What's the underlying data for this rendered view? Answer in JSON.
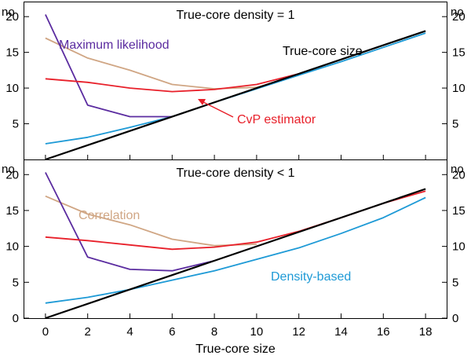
{
  "chart_data": {
    "type": "line",
    "xlabel": "True-core size",
    "unit_label": "no",
    "x_ticks": [
      "0",
      "2",
      "4",
      "6",
      "8",
      "10",
      "12",
      "14",
      "16",
      "18"
    ],
    "xlim": [
      -1,
      19
    ],
    "colors": {
      "true_core": "#000000",
      "max_likelihood": "#5b2ca0",
      "correlation": "#d0a684",
      "cvp": "#e8202a",
      "density": "#1e9ad6"
    },
    "panels": [
      {
        "title": "True-core density = 1",
        "ylim": [
          0,
          22
        ],
        "y_ticks": [
          "5",
          "10",
          "15",
          "20"
        ],
        "series": [
          {
            "name": "Correlation",
            "color_key": "correlation",
            "x": [
              0,
              2,
              4,
              6,
              8,
              10,
              12
            ],
            "y": [
              17.0,
              14.2,
              12.5,
              10.5,
              9.9,
              10.1,
              11.8
            ]
          },
          {
            "name": "Maximum likelihood",
            "color_key": "max_likelihood",
            "x": [
              0,
              2,
              4,
              6
            ],
            "y": [
              20.3,
              7.6,
              6.0,
              6.0
            ]
          },
          {
            "name": "CvP estimator",
            "color_key": "cvp",
            "x": [
              0,
              2,
              4,
              6,
              8,
              10,
              12
            ],
            "y": [
              11.3,
              10.8,
              10.0,
              9.5,
              9.8,
              10.5,
              12.0
            ]
          },
          {
            "name": "Density-based",
            "color_key": "density",
            "x": [
              0,
              2,
              4,
              6,
              8,
              10,
              12,
              14,
              16,
              18
            ],
            "y": [
              2.2,
              3.1,
              4.5,
              6.0,
              8.0,
              9.9,
              11.8,
              13.7,
              15.7,
              17.7
            ]
          },
          {
            "name": "True-core size",
            "color_key": "true_core",
            "x": [
              0,
              18
            ],
            "y": [
              0,
              18
            ]
          }
        ],
        "labels": [
          {
            "text": "Maximum likelihood",
            "color_key": "max_likelihood"
          },
          {
            "text": "True-core size",
            "color_key": "true_core"
          },
          {
            "text": "CvP estimator",
            "color_key": "cvp"
          }
        ]
      },
      {
        "title": "True-core density < 1",
        "ylim": [
          0,
          22
        ],
        "y_ticks": [
          "0",
          "5",
          "10",
          "15",
          "20"
        ],
        "series": [
          {
            "name": "Correlation",
            "color_key": "correlation",
            "x": [
              0,
              2,
              4,
              6,
              8,
              10
            ],
            "y": [
              17.0,
              14.5,
              13.0,
              11.0,
              10.1,
              10.3
            ]
          },
          {
            "name": "Maximum likelihood",
            "color_key": "max_likelihood",
            "x": [
              0,
              2,
              4,
              6,
              8
            ],
            "y": [
              20.3,
              8.5,
              6.8,
              6.6,
              8.0
            ]
          },
          {
            "name": "CvP estimator",
            "color_key": "cvp",
            "x": [
              0,
              2,
              4,
              6,
              8,
              10,
              12,
              14,
              16,
              18
            ],
            "y": [
              11.3,
              10.8,
              10.2,
              9.6,
              9.9,
              10.6,
              12.1,
              14.0,
              16.0,
              17.7
            ]
          },
          {
            "name": "Density-based",
            "color_key": "density",
            "x": [
              0,
              2,
              4,
              6,
              8,
              10,
              12,
              14,
              16,
              18
            ],
            "y": [
              2.1,
              2.9,
              4.0,
              5.3,
              6.6,
              8.2,
              9.8,
              11.8,
              14.0,
              16.8
            ]
          },
          {
            "name": "True-core size",
            "color_key": "true_core",
            "x": [
              0,
              18
            ],
            "y": [
              0,
              18
            ]
          }
        ],
        "labels": [
          {
            "text": "Correlation",
            "color_key": "correlation"
          },
          {
            "text": "Density-based",
            "color_key": "density"
          }
        ]
      }
    ]
  }
}
